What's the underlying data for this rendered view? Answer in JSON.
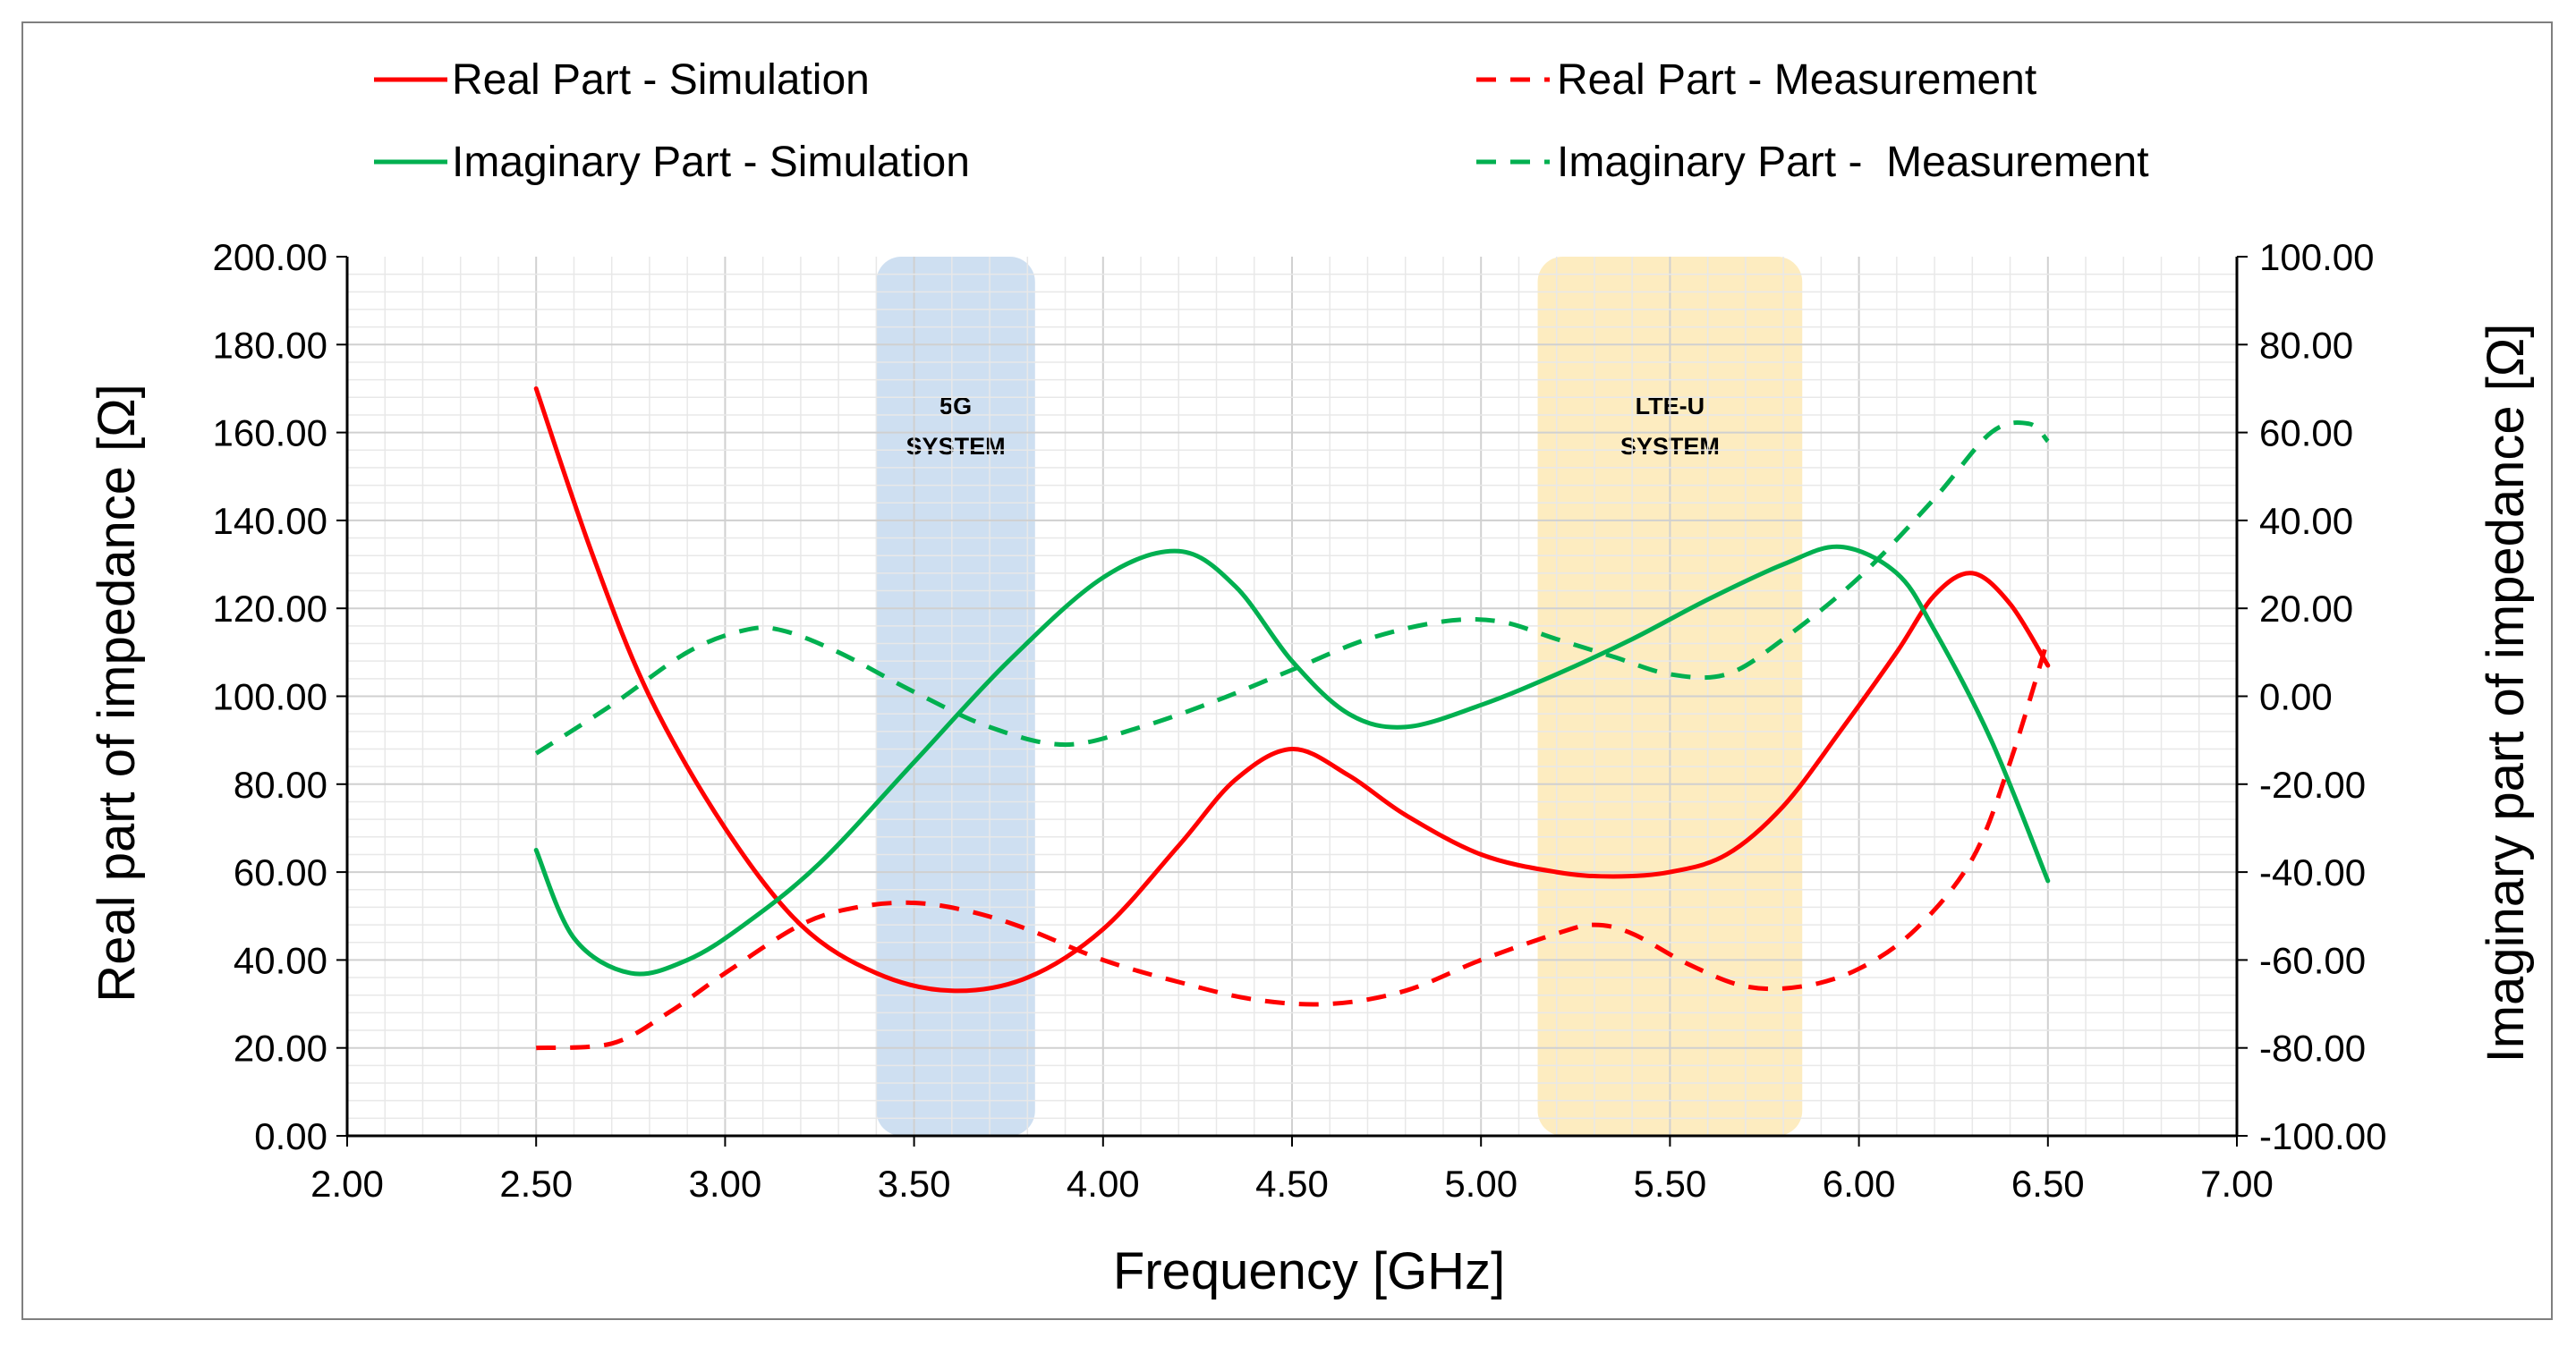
{
  "chart_data": {
    "type": "line",
    "title": "",
    "xlabel": "Frequency [GHz]",
    "ylabel_left": "Real part of impedance [Ω]",
    "ylabel_right": "Imaginary part of impedance [Ω]",
    "xlim": [
      2.0,
      7.0
    ],
    "ylim_left": [
      0,
      200
    ],
    "ylim_right": [
      -100,
      100
    ],
    "x_ticks": [
      "2.00",
      "2.50",
      "3.00",
      "3.50",
      "4.00",
      "4.50",
      "5.00",
      "5.50",
      "6.00",
      "6.50",
      "7.00"
    ],
    "y_left_ticks": [
      "0.00",
      "20.00",
      "40.00",
      "60.00",
      "80.00",
      "100.00",
      "120.00",
      "140.00",
      "160.00",
      "180.00",
      "200.00"
    ],
    "y_right_ticks": [
      "-100.00",
      "-80.00",
      "-60.00",
      "-40.00",
      "-20.00",
      "0.00",
      "20.00",
      "40.00",
      "60.00",
      "80.00",
      "100.00"
    ],
    "grid": true,
    "legend_position": "top",
    "bands": [
      {
        "name": "5G",
        "label_lines": [
          "5G",
          "SYSTEM"
        ],
        "x_start": 3.4,
        "x_end": 3.82,
        "color": "#c6d9ee"
      },
      {
        "name": "LTE-U",
        "label_lines": [
          "LTE-U",
          "SYSTEM"
        ],
        "x_start": 5.15,
        "x_end": 5.85,
        "color": "#fde9b5"
      }
    ],
    "series": [
      {
        "name": "Real Part - Simulation",
        "axis": "left",
        "color": "#ff0000",
        "dash": false,
        "points": [
          [
            2.5,
            170
          ],
          [
            2.65,
            132
          ],
          [
            2.8,
            100
          ],
          [
            3.0,
            70
          ],
          [
            3.2,
            48
          ],
          [
            3.4,
            37
          ],
          [
            3.6,
            33
          ],
          [
            3.8,
            36
          ],
          [
            4.0,
            47
          ],
          [
            4.2,
            66
          ],
          [
            4.35,
            81
          ],
          [
            4.5,
            88
          ],
          [
            4.65,
            82
          ],
          [
            4.8,
            73
          ],
          [
            5.0,
            64
          ],
          [
            5.2,
            60
          ],
          [
            5.35,
            59
          ],
          [
            5.5,
            60
          ],
          [
            5.65,
            64
          ],
          [
            5.8,
            75
          ],
          [
            5.95,
            92
          ],
          [
            6.1,
            110
          ],
          [
            6.2,
            123
          ],
          [
            6.3,
            128
          ],
          [
            6.4,
            121
          ],
          [
            6.5,
            107
          ]
        ]
      },
      {
        "name": "Real Part - Measurement",
        "axis": "left",
        "color": "#ff0000",
        "dash": true,
        "points": [
          [
            2.5,
            20
          ],
          [
            2.7,
            21
          ],
          [
            2.85,
            28
          ],
          [
            3.0,
            37
          ],
          [
            3.2,
            48
          ],
          [
            3.35,
            52
          ],
          [
            3.5,
            53
          ],
          [
            3.65,
            51
          ],
          [
            3.8,
            47
          ],
          [
            4.0,
            40
          ],
          [
            4.2,
            35
          ],
          [
            4.4,
            31
          ],
          [
            4.6,
            30
          ],
          [
            4.8,
            33
          ],
          [
            5.0,
            40
          ],
          [
            5.2,
            46
          ],
          [
            5.3,
            48
          ],
          [
            5.4,
            46
          ],
          [
            5.55,
            39
          ],
          [
            5.7,
            34
          ],
          [
            5.85,
            34
          ],
          [
            6.0,
            38
          ],
          [
            6.15,
            47
          ],
          [
            6.3,
            63
          ],
          [
            6.4,
            85
          ],
          [
            6.5,
            113
          ]
        ]
      },
      {
        "name": "Imaginary Part - Simulation",
        "axis": "right",
        "color": "#00b050",
        "dash": false,
        "points": [
          [
            2.5,
            -35
          ],
          [
            2.6,
            -55
          ],
          [
            2.75,
            -63
          ],
          [
            2.9,
            -60
          ],
          [
            3.05,
            -52
          ],
          [
            3.25,
            -38
          ],
          [
            3.5,
            -15
          ],
          [
            3.75,
            8
          ],
          [
            4.0,
            27
          ],
          [
            4.2,
            33
          ],
          [
            4.35,
            25
          ],
          [
            4.5,
            8
          ],
          [
            4.65,
            -4
          ],
          [
            4.8,
            -7
          ],
          [
            5.0,
            -2
          ],
          [
            5.2,
            5
          ],
          [
            5.4,
            13
          ],
          [
            5.6,
            22
          ],
          [
            5.8,
            30
          ],
          [
            5.95,
            34
          ],
          [
            6.1,
            28
          ],
          [
            6.2,
            15
          ],
          [
            6.35,
            -10
          ],
          [
            6.5,
            -42
          ]
        ]
      },
      {
        "name": "Imaginary Part -  Measurement",
        "axis": "right",
        "color": "#00b050",
        "dash": true,
        "points": [
          [
            2.5,
            -13
          ],
          [
            2.7,
            -2
          ],
          [
            2.9,
            10
          ],
          [
            3.05,
            15
          ],
          [
            3.15,
            15
          ],
          [
            3.3,
            10
          ],
          [
            3.5,
            1
          ],
          [
            3.7,
            -7
          ],
          [
            3.9,
            -11
          ],
          [
            4.1,
            -7
          ],
          [
            4.3,
            -1
          ],
          [
            4.5,
            6
          ],
          [
            4.7,
            13
          ],
          [
            4.9,
            17
          ],
          [
            5.05,
            17
          ],
          [
            5.2,
            13
          ],
          [
            5.35,
            9
          ],
          [
            5.5,
            5
          ],
          [
            5.65,
            5
          ],
          [
            5.8,
            13
          ],
          [
            6.0,
            27
          ],
          [
            6.2,
            45
          ],
          [
            6.35,
            60
          ],
          [
            6.45,
            62
          ],
          [
            6.5,
            58
          ]
        ]
      }
    ]
  }
}
